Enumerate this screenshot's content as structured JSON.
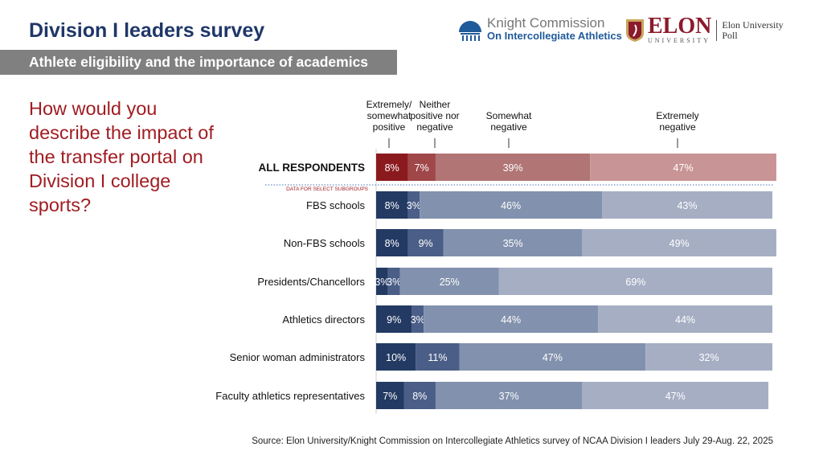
{
  "header": {
    "title": "Division I leaders survey",
    "subtitle": "Athlete eligibility and the importance of academics"
  },
  "question": "How would you describe the impact of the transfer portal on Division I college sports?",
  "logos": {
    "knight_line1": "Knight Commission",
    "knight_line2": "On Intercollegiate Athletics",
    "elon": "ELON",
    "elon_sub": "UNIVERSITY",
    "poll": "Elon University Poll"
  },
  "source": "Source: Elon University/Knight Commission on Intercollegiate Athletics survey of NCAA Division I leaders July 29-Aug. 22, 2025",
  "chart_data": {
    "type": "bar",
    "orientation": "horizontal",
    "stacked": true,
    "series_names": [
      "Extremely/ somewhat positive",
      "Neither positive nor negative",
      "Somewhat negative",
      "Extremely negative"
    ],
    "subgroup_note": "DATA FOR SELECT SUBGROUPS",
    "colors_all": [
      "#8b1a1f",
      "#a0474a",
      "#b07574",
      "#c99495"
    ],
    "colors_sub": [
      "#233a63",
      "#4b5e87",
      "#8291ad",
      "#a5aec3"
    ],
    "categories": [
      "ALL RESPONDENTS",
      "FBS schools",
      "Non-FBS schools",
      "Presidents/Chancellors",
      "Athletics directors",
      "Senior woman administrators",
      "Faculty athletics representatives"
    ],
    "values": [
      [
        8,
        7,
        39,
        47
      ],
      [
        8,
        3,
        46,
        43
      ],
      [
        8,
        9,
        35,
        49
      ],
      [
        3,
        3,
        25,
        69
      ],
      [
        9,
        3,
        44,
        44
      ],
      [
        10,
        11,
        47,
        32
      ],
      [
        7,
        8,
        37,
        47
      ]
    ],
    "unit": "%"
  }
}
